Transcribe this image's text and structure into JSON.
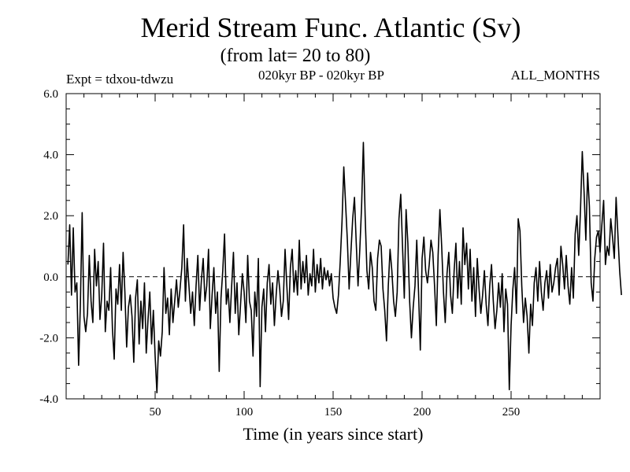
{
  "chart_data": {
    "type": "line",
    "title": "Merid Stream Func. Atlantic (Sv)",
    "subtitle": "(from lat= 20 to 80)",
    "experiment": "Expt = tdxou-tdwzu",
    "period": "020kyr BP - 020kyr BP",
    "months": "ALL_MONTHS",
    "xlabel": "Time (in years since start)",
    "ylabel": "",
    "xlim": [
      0,
      300
    ],
    "ylim": [
      -4.0,
      6.0
    ],
    "x_ticks": [
      50,
      100,
      150,
      200,
      250
    ],
    "x_tick_labels": [
      "50",
      "100",
      "150",
      "200",
      "250"
    ],
    "y_ticks": [
      -4.0,
      -2.0,
      0.0,
      2.0,
      4.0,
      6.0
    ],
    "y_tick_labels": [
      "-4.0",
      "-2.0",
      "0.0",
      "2.0",
      "4.0",
      "6.0"
    ],
    "reference_line": 0.0,
    "series": [
      {
        "name": "Merid Stream Func. Atlantic",
        "x_start": 1,
        "x_step": 1,
        "values": [
          0.4,
          1.7,
          -0.6,
          1.6,
          -0.5,
          -0.2,
          -2.9,
          -0.9,
          2.1,
          -1.3,
          -1.8,
          -1.2,
          0.7,
          -0.8,
          -1.5,
          0.9,
          -0.3,
          0.5,
          -1.4,
          -0.6,
          1.1,
          -1.8,
          -0.8,
          -1.1,
          0.3,
          -1.7,
          -2.7,
          -0.4,
          -0.9,
          0.4,
          -1.1,
          0.8,
          -0.5,
          -2.3,
          -1.0,
          -0.6,
          -1.3,
          -2.8,
          -0.7,
          -0.1,
          -2.2,
          -0.8,
          -1.7,
          -0.2,
          -2.5,
          -1.4,
          -0.5,
          -2.2,
          -1.1,
          -2.6,
          -3.8,
          -2.1,
          -2.6,
          -1.8,
          0.3,
          -1.2,
          -0.7,
          -1.9,
          -0.4,
          -1.5,
          -0.8,
          -0.1,
          -1.0,
          -0.4,
          0.3,
          1.7,
          -0.8,
          0.6,
          -0.3,
          -1.2,
          -0.5,
          -1.6,
          -0.3,
          0.7,
          -1.1,
          -0.1,
          0.6,
          -0.8,
          -0.3,
          0.9,
          -1.7,
          -0.6,
          0.3,
          -1.2,
          -0.5,
          -3.1,
          -0.7,
          0.2,
          1.4,
          -0.9,
          -0.4,
          -1.5,
          -0.3,
          0.8,
          -1.2,
          -0.2,
          -1.9,
          -0.9,
          0.1,
          -0.5,
          -1.5,
          0.7,
          -0.8,
          -1.1,
          -2.6,
          -0.5,
          -1.3,
          0.6,
          -3.6,
          -1.0,
          -0.4,
          -1.8,
          -0.2,
          0.4,
          -0.9,
          -0.2,
          -1.6,
          -0.6,
          0.2,
          -0.4,
          -1.3,
          -0.8,
          0.9,
          -0.3,
          -1.4,
          0.3,
          0.9,
          -0.5,
          0.2,
          -0.6,
          1.2,
          -0.4,
          0.5,
          -0.2,
          0.7,
          -0.6,
          0.1,
          -0.3,
          0.9,
          -0.5,
          0.4,
          -0.2,
          0.6,
          -0.4,
          0.3,
          -0.1,
          0.2,
          -0.3,
          0.1,
          -0.7,
          -1.0,
          -1.2,
          -0.6,
          0.5,
          1.8,
          3.6,
          2.4,
          1.2,
          -0.4,
          0.8,
          1.9,
          2.6,
          1.1,
          -0.3,
          0.9,
          2.3,
          4.4,
          2.0,
          0.2,
          -0.4,
          0.8,
          0.3,
          -0.8,
          -1.1,
          0.6,
          1.2,
          1.0,
          -0.4,
          -1.1,
          -2.1,
          -0.3,
          0.9,
          0.2,
          -0.8,
          -1.3,
          -0.5,
          1.9,
          2.7,
          1.0,
          -0.7,
          2.2,
          1.1,
          -0.8,
          -2.0,
          -1.0,
          -0.3,
          1.2,
          -0.5,
          -2.4,
          0.6,
          1.3,
          0.2,
          -0.2,
          0.4,
          1.2,
          0.8,
          -0.3,
          -1.6,
          0.7,
          2.2,
          1.0,
          -0.5,
          -1.5,
          0.1,
          0.8,
          -0.6,
          -1.2,
          0.2,
          1.1,
          -0.7,
          0.5,
          -0.9,
          1.6,
          0.4,
          1.1,
          -0.4,
          0.9,
          -0.8,
          0.3,
          -1.3,
          0.6,
          -0.4,
          -1.2,
          -0.6,
          0.2,
          -0.9,
          -1.6,
          -0.3,
          0.4,
          -0.8,
          -1.7,
          -1.1,
          -0.2,
          -1.0,
          0.1,
          -1.8,
          -0.4,
          -0.9,
          -3.7,
          -1.6,
          -0.4,
          0.3,
          -1.2,
          1.9,
          1.5,
          -0.3,
          -1.5,
          -0.7,
          -1.3,
          -2.5,
          -0.9,
          -1.6,
          -0.2,
          0.3,
          -0.8,
          0.5,
          -0.5,
          -1.1,
          -0.2,
          0.2,
          -0.7,
          0.4,
          -0.5,
          -0.2,
          0.3,
          0.6,
          -0.6,
          1.0,
          0.4,
          -0.4,
          0.7,
          -0.3,
          -0.9,
          0.3,
          -0.7,
          1.4,
          2.0,
          0.7,
          2.2,
          4.1,
          2.8,
          1.2,
          3.4,
          2.3,
          -0.2,
          -0.8,
          0.6,
          1.3,
          1.5,
          0.8,
          1.7,
          2.5,
          0.4,
          1.0,
          0.7,
          1.9,
          1.3,
          0.6,
          2.6,
          1.4,
          0.2,
          -0.6
        ]
      }
    ]
  }
}
